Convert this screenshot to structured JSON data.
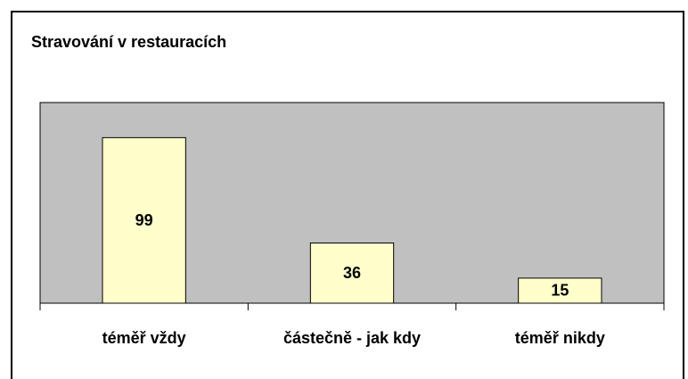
{
  "chart_data": {
    "type": "bar",
    "title": "Stravování v restauracích",
    "categories": [
      "téměř vždy",
      "částečně - jak kdy",
      "téměř nikdy"
    ],
    "values": [
      99,
      36,
      15
    ],
    "color": "#ffffcc",
    "plot_color": "#c0c0c0",
    "ylim": [
      0,
      120
    ]
  }
}
